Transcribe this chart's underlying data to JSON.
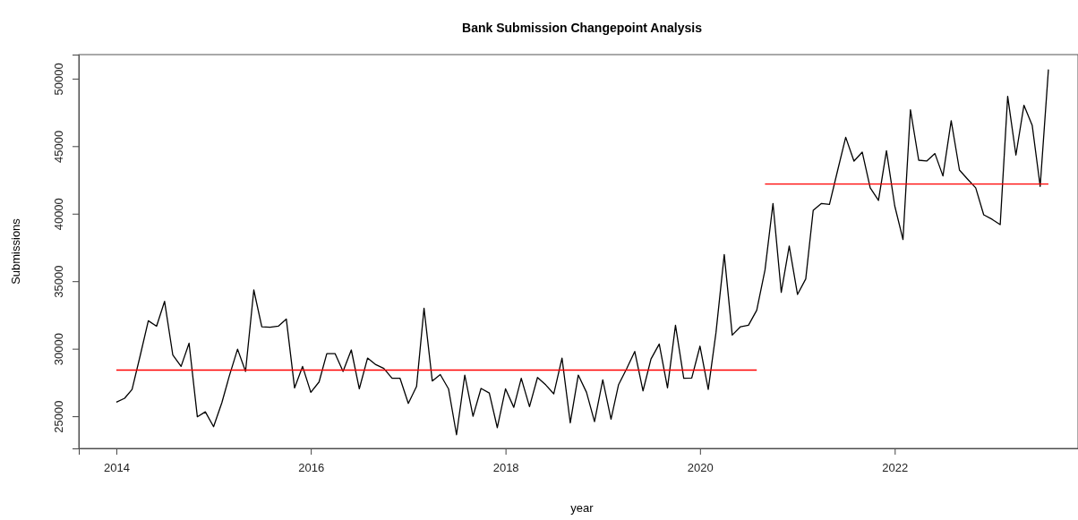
{
  "chart_data": {
    "type": "line",
    "title": "Bank Submission Changepoint Analysis",
    "xlabel": "year",
    "ylabel": "Submissions",
    "xlim": [
      "2013-08-13",
      "2023-11-20"
    ],
    "xticks": [
      "2014",
      "2016",
      "2018",
      "2020",
      "2022"
    ],
    "ylim": [
      22620,
      51780
    ],
    "yticks": [
      25000,
      30000,
      35000,
      40000,
      45000,
      50000
    ],
    "grid": false,
    "series": [
      {
        "color": "#000000",
        "x": [
          "2014-01",
          "2014-02",
          "2014-03",
          "2014-04",
          "2014-05",
          "2014-06",
          "2014-07",
          "2014-08",
          "2014-09",
          "2014-10",
          "2014-11",
          "2014-12",
          "2015-01",
          "2015-02",
          "2015-03",
          "2015-04",
          "2015-05",
          "2015-06",
          "2015-07",
          "2015-08",
          "2015-09",
          "2015-10",
          "2015-11",
          "2015-12",
          "2016-01",
          "2016-02",
          "2016-03",
          "2016-04",
          "2016-05",
          "2016-06",
          "2016-07",
          "2016-08",
          "2016-09",
          "2016-10",
          "2016-11",
          "2016-12",
          "2017-01",
          "2017-02",
          "2017-03",
          "2017-04",
          "2017-05",
          "2017-06",
          "2017-07",
          "2017-08",
          "2017-09",
          "2017-10",
          "2017-11",
          "2017-12",
          "2018-01",
          "2018-02",
          "2018-03",
          "2018-04",
          "2018-05",
          "2018-06",
          "2018-07",
          "2018-08",
          "2018-09",
          "2018-10",
          "2018-11",
          "2018-12",
          "2019-01",
          "2019-02",
          "2019-03",
          "2019-04",
          "2019-05",
          "2019-06",
          "2019-07",
          "2019-08",
          "2019-09",
          "2019-10",
          "2019-11",
          "2019-12",
          "2020-01",
          "2020-02",
          "2020-03",
          "2020-04",
          "2020-05",
          "2020-06",
          "2020-07",
          "2020-08",
          "2020-09",
          "2020-10",
          "2020-11",
          "2020-12",
          "2021-01",
          "2021-02",
          "2021-03",
          "2021-04",
          "2021-05",
          "2021-06",
          "2021-07",
          "2021-08",
          "2021-09",
          "2021-10",
          "2021-11",
          "2021-12",
          "2022-01",
          "2022-02",
          "2022-03",
          "2022-04",
          "2022-05",
          "2022-06",
          "2022-07",
          "2022-08",
          "2022-09",
          "2022-10",
          "2022-11",
          "2022-12",
          "2023-01",
          "2023-02",
          "2023-03",
          "2023-04",
          "2023-05",
          "2023-06",
          "2023-07",
          "2023-08"
        ],
        "values": [
          26040,
          26330,
          26990,
          29530,
          32070,
          31670,
          33510,
          29530,
          28690,
          30410,
          24960,
          25330,
          24230,
          26000,
          27980,
          29970,
          28320,
          34350,
          31630,
          31590,
          31670,
          32200,
          27100,
          28690,
          26770,
          27540,
          29640,
          29640,
          28320,
          29910,
          27030,
          29310,
          28820,
          28540,
          27810,
          27810,
          25950,
          27210,
          33000,
          27610,
          28090,
          27030,
          23630,
          28050,
          25000,
          27060,
          26720,
          24160,
          27030,
          25660,
          27810,
          25710,
          27870,
          27320,
          26660,
          29310,
          24510,
          28050,
          26770,
          24600,
          27700,
          24780,
          27320,
          28540,
          29800,
          26880,
          29240,
          30350,
          27100,
          31740,
          27810,
          27830,
          30190,
          26990,
          31190,
          36980,
          31010,
          31630,
          31740,
          32850,
          35830,
          40760,
          34170,
          37600,
          34020,
          35170,
          40250,
          40760,
          40690,
          43230,
          45660,
          43890,
          44560,
          41910,
          40980,
          44670,
          40580,
          38090,
          47700,
          43960,
          43900,
          44450,
          42790,
          46880,
          43230,
          42570,
          41910,
          39920,
          39590,
          39190,
          48690,
          44340,
          48030,
          46550,
          42020,
          50680
        ]
      },
      {
        "color": "#ff0000",
        "x": [
          "2014-01",
          "2020-08"
        ],
        "values": [
          28420,
          28420
        ]
      },
      {
        "color": "#ff0000",
        "x": [
          "2020-09",
          "2023-08"
        ],
        "values": [
          42200,
          42200
        ]
      }
    ]
  }
}
